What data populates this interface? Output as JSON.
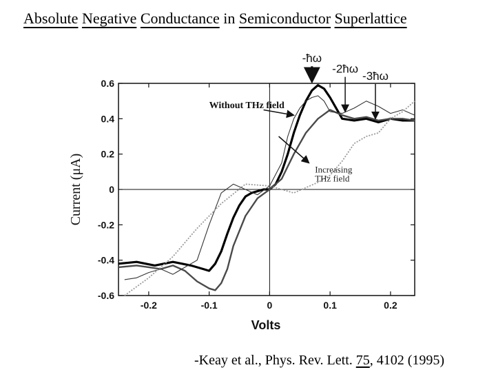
{
  "slide": {
    "title_words": [
      "Absolute",
      "Negative",
      "Conductance",
      "in",
      "Semiconductor",
      "Superlattice"
    ],
    "citation_prefix": "-Keay et al., Phys. Rev. Lett. ",
    "citation_volume": "75",
    "citation_suffix": ", 4102 (1995)"
  },
  "chart_data": {
    "type": "line",
    "title": "",
    "xlabel": "Volts",
    "ylabel": "Current (μA)",
    "xlim": [
      -0.25,
      0.24
    ],
    "ylim": [
      -0.6,
      0.6
    ],
    "x_ticks": [
      -0.2,
      -0.1,
      0,
      0.1,
      0.2
    ],
    "x_tick_labels": [
      "-0.2",
      "-0.1",
      "0",
      "0.1",
      "0.2"
    ],
    "y_ticks": [
      -0.6,
      -0.4,
      -0.2,
      0,
      0.2,
      0.4,
      0.6
    ],
    "y_tick_labels": [
      "-0.6",
      "-0.4",
      "-0.2",
      "0",
      "0.2",
      "0.4",
      "0.6"
    ],
    "grid": false,
    "zero_lines": true,
    "annotations": [
      {
        "name": "without-thz",
        "text": "Without THz field",
        "x": -0.1,
        "y": 0.46
      },
      {
        "name": "increasing-thz-1",
        "text": "Increasing",
        "x": 0.075,
        "y": 0.095
      },
      {
        "name": "increasing-thz-2",
        "text": "THz field",
        "x": 0.075,
        "y": 0.045
      }
    ],
    "photon_markers": [
      {
        "name": "marker-1hw",
        "text": "-ħω",
        "x": 0.07,
        "y_top": 0.72,
        "y_tip": 0.61
      },
      {
        "name": "marker-2hw",
        "text": "-2ħω",
        "x": 0.125,
        "y_top": 0.66,
        "y_tip": 0.44
      },
      {
        "name": "marker-3hw",
        "text": "-3ħω",
        "x": 0.175,
        "y_top": 0.62,
        "y_tip": 0.4
      }
    ],
    "series": [
      {
        "style": "bold",
        "color": "#000000",
        "x": [
          -0.25,
          -0.22,
          -0.19,
          -0.16,
          -0.13,
          -0.11,
          -0.1,
          -0.09,
          -0.08,
          -0.07,
          -0.06,
          -0.05,
          -0.04,
          -0.03,
          -0.02,
          -0.01,
          0,
          0.01,
          0.02,
          0.03,
          0.04,
          0.05,
          0.06,
          0.07,
          0.08,
          0.09,
          0.1,
          0.11,
          0.12,
          0.14,
          0.16,
          0.18,
          0.2,
          0.22,
          0.24
        ],
        "y": [
          -0.42,
          -0.41,
          -0.43,
          -0.41,
          -0.43,
          -0.45,
          -0.46,
          -0.42,
          -0.35,
          -0.25,
          -0.16,
          -0.09,
          -0.04,
          -0.02,
          -0.01,
          0,
          0,
          0.03,
          0.1,
          0.2,
          0.32,
          0.42,
          0.5,
          0.56,
          0.59,
          0.57,
          0.52,
          0.46,
          0.4,
          0.39,
          0.4,
          0.38,
          0.4,
          0.39,
          0.39
        ]
      },
      {
        "style": "medium-gray",
        "color": "#4a4a4a",
        "x": [
          -0.25,
          -0.22,
          -0.2,
          -0.18,
          -0.16,
          -0.14,
          -0.12,
          -0.1,
          -0.09,
          -0.08,
          -0.07,
          -0.06,
          -0.04,
          -0.02,
          0,
          0.02,
          0.04,
          0.06,
          0.08,
          0.1,
          0.12,
          0.14,
          0.16,
          0.18,
          0.2,
          0.22,
          0.24
        ],
        "y": [
          -0.44,
          -0.43,
          -0.44,
          -0.45,
          -0.43,
          -0.46,
          -0.52,
          -0.56,
          -0.57,
          -0.53,
          -0.45,
          -0.32,
          -0.15,
          -0.05,
          0,
          0.06,
          0.2,
          0.32,
          0.4,
          0.45,
          0.42,
          0.4,
          0.41,
          0.39,
          0.4,
          0.4,
          0.39
        ]
      },
      {
        "style": "thin",
        "color": "#333333",
        "x": [
          -0.24,
          -0.22,
          -0.2,
          -0.18,
          -0.16,
          -0.14,
          -0.12,
          -0.1,
          -0.08,
          -0.06,
          -0.04,
          -0.02,
          0,
          0.02,
          0.03,
          0.04,
          0.05,
          0.06,
          0.07,
          0.08,
          0.09,
          0.1,
          0.12,
          0.14,
          0.16,
          0.18,
          0.2,
          0.22,
          0.24
        ],
        "y": [
          -0.51,
          -0.5,
          -0.47,
          -0.45,
          -0.48,
          -0.44,
          -0.4,
          -0.2,
          -0.02,
          0.03,
          0.0,
          -0.03,
          0.02,
          0.15,
          0.3,
          0.4,
          0.46,
          0.5,
          0.52,
          0.53,
          0.5,
          0.44,
          0.43,
          0.46,
          0.5,
          0.47,
          0.43,
          0.45,
          0.42
        ]
      },
      {
        "style": "dotted-light",
        "color": "#9a9a9a",
        "x": [
          -0.24,
          -0.2,
          -0.16,
          -0.12,
          -0.08,
          -0.04,
          0,
          0.04,
          0.08,
          0.1,
          0.12,
          0.14,
          0.16,
          0.18,
          0.2,
          0.22,
          0.24
        ],
        "y": [
          -0.6,
          -0.5,
          -0.38,
          -0.22,
          -0.08,
          0.03,
          0.02,
          -0.02,
          0.04,
          0.08,
          0.16,
          0.26,
          0.3,
          0.32,
          0.4,
          0.44,
          0.5
        ]
      }
    ]
  }
}
